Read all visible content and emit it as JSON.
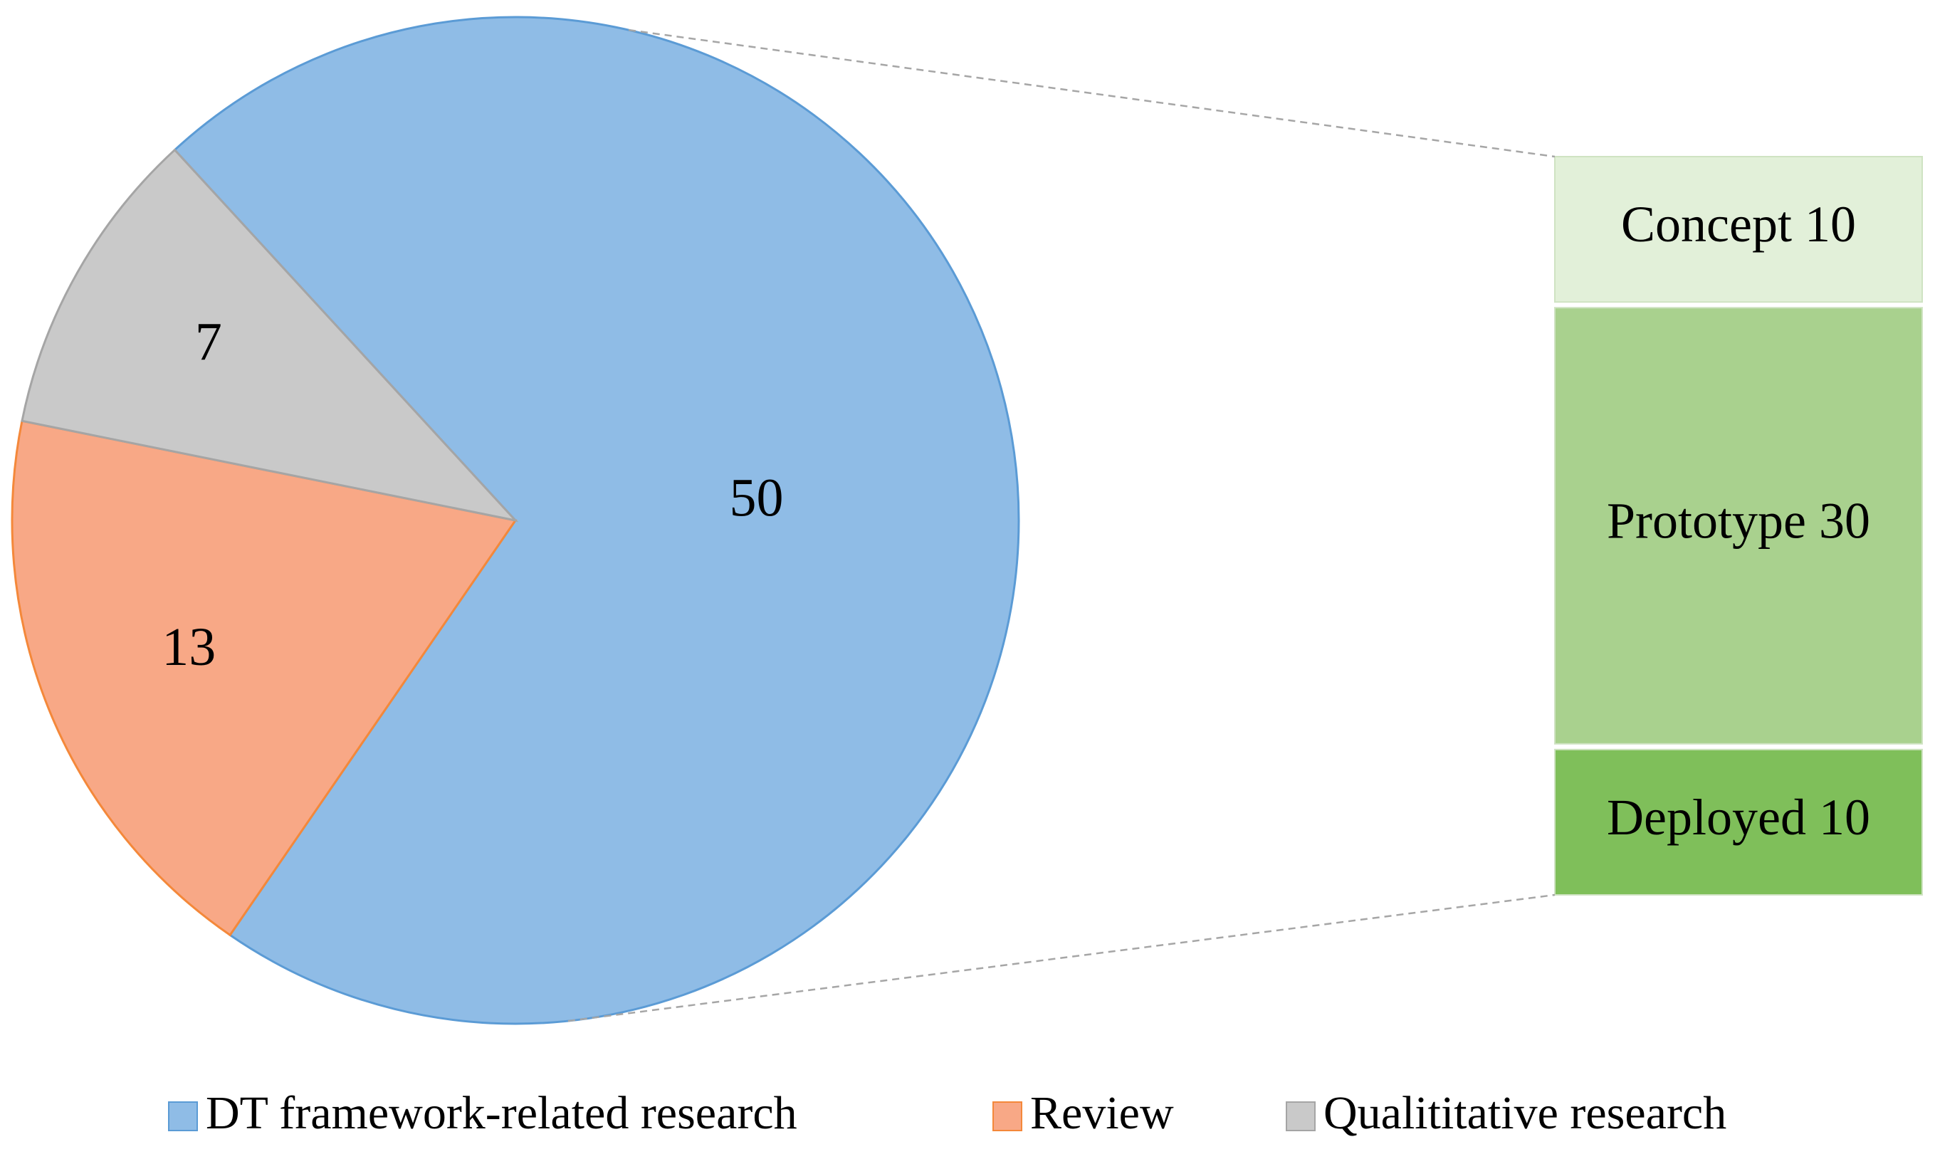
{
  "chart_data": {
    "type": "pie-of-bar",
    "categories": [
      "DT framework-related research",
      "Review",
      "Qualititative research"
    ],
    "values": [
      50,
      13,
      7
    ],
    "colors": [
      "#8fbce6",
      "#f8a886",
      "#c9c9c9"
    ],
    "stroke_colors": [
      "#5b9bd5",
      "#f4883a",
      "#a5a5a5"
    ],
    "breakdown": {
      "categories": [
        "Concept",
        "Prototype",
        "Deployed"
      ],
      "values": [
        10,
        30,
        10
      ],
      "colors": [
        "#e2f0d9",
        "#a9d18e",
        "#7fbf5a"
      ]
    },
    "legend": "bottom"
  }
}
